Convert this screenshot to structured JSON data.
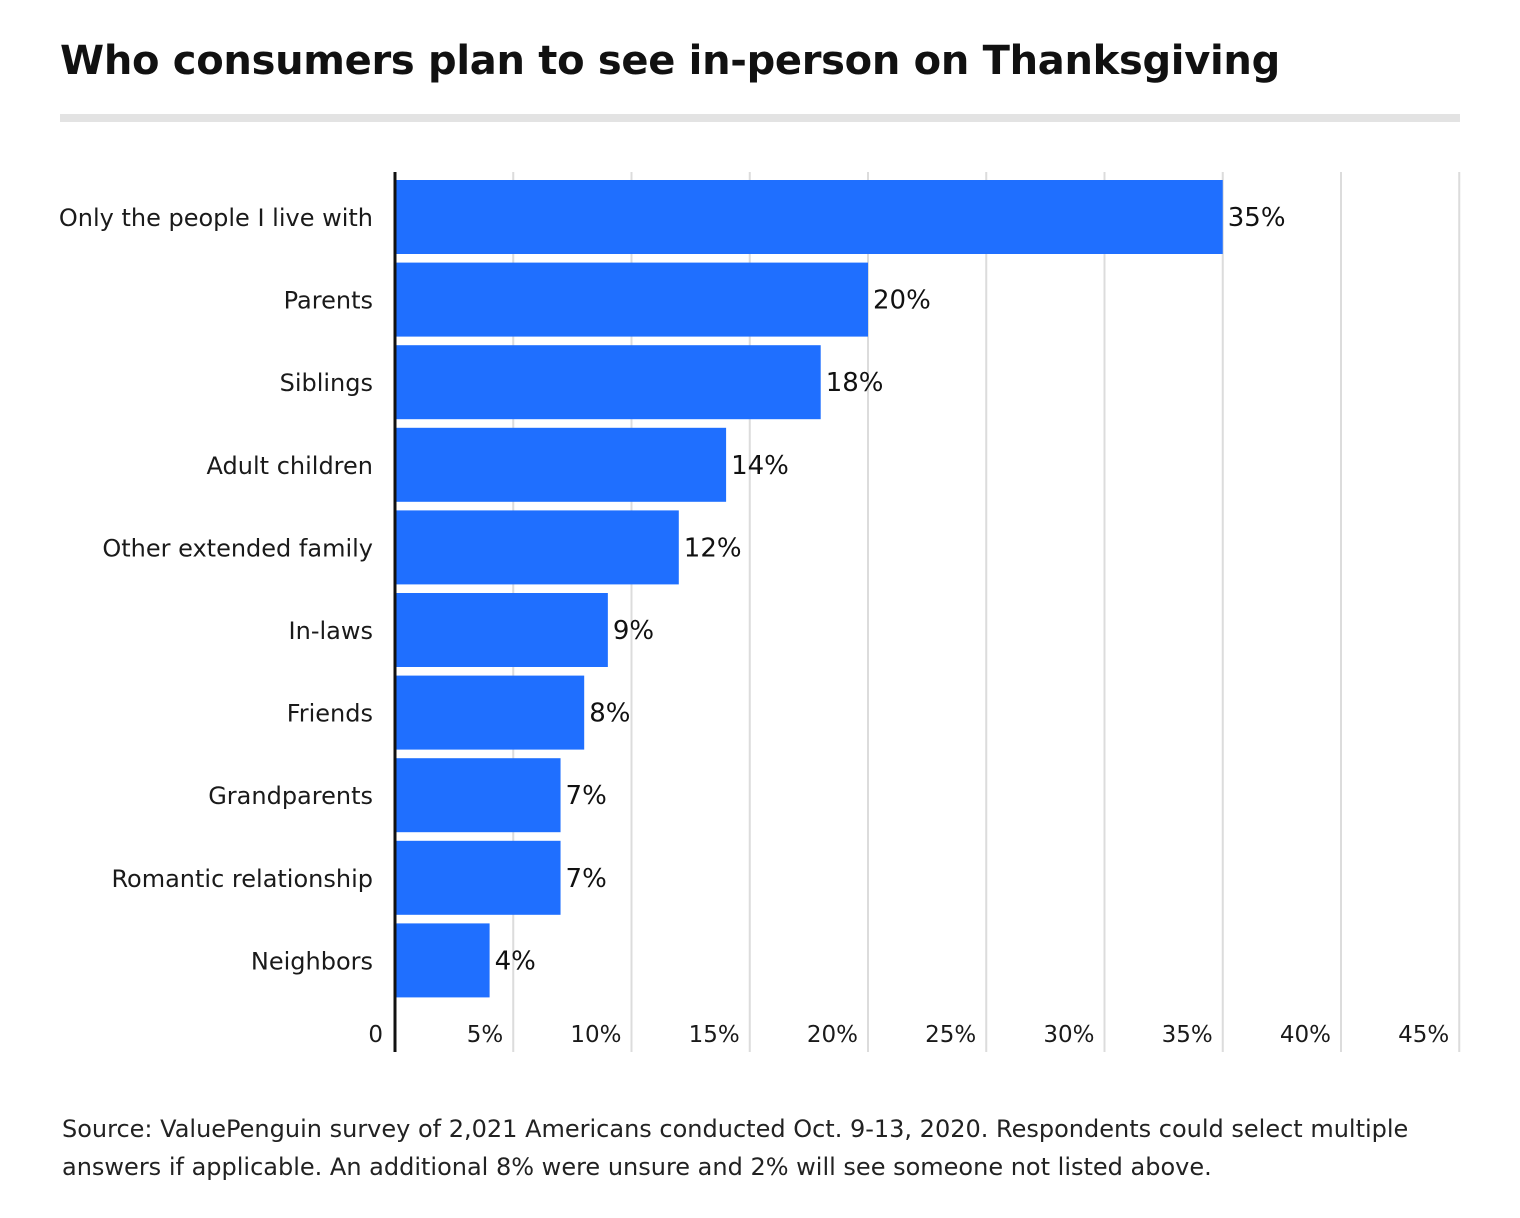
{
  "chart_data": {
    "type": "bar",
    "orientation": "horizontal",
    "title": "Who consumers plan to see in-person on Thanksgiving",
    "categories": [
      "Only the people I live with",
      "Parents",
      "Siblings",
      "Adult children",
      "Other extended family",
      "In-laws",
      "Friends",
      "Grandparents",
      "Romantic relationship",
      "Neighbors"
    ],
    "values": [
      35,
      20,
      18,
      14,
      12,
      9,
      8,
      7,
      7,
      4
    ],
    "value_labels": [
      "35%",
      "20%",
      "18%",
      "14%",
      "12%",
      "9%",
      "8%",
      "7%",
      "7%",
      "4%"
    ],
    "xlim": [
      0,
      45
    ],
    "xticks": [
      0,
      5,
      10,
      15,
      20,
      25,
      30,
      35,
      40,
      45
    ],
    "xtick_labels": [
      "0",
      "5%",
      "10%",
      "15%",
      "20%",
      "25%",
      "30%",
      "35%",
      "40%",
      "45%"
    ],
    "xlabel": "",
    "ylabel": "",
    "grid": "vertical",
    "bar_color": "#1f6fff",
    "grid_color": "#dcdcdc",
    "axis_color": "#111111",
    "source": "Source: ValuePenguin survey of 2,021 Americans conducted Oct. 9-13, 2020. Respondents could select multiple answers if applicable. An additional 8% were unsure and 2% will see someone not listed above."
  }
}
